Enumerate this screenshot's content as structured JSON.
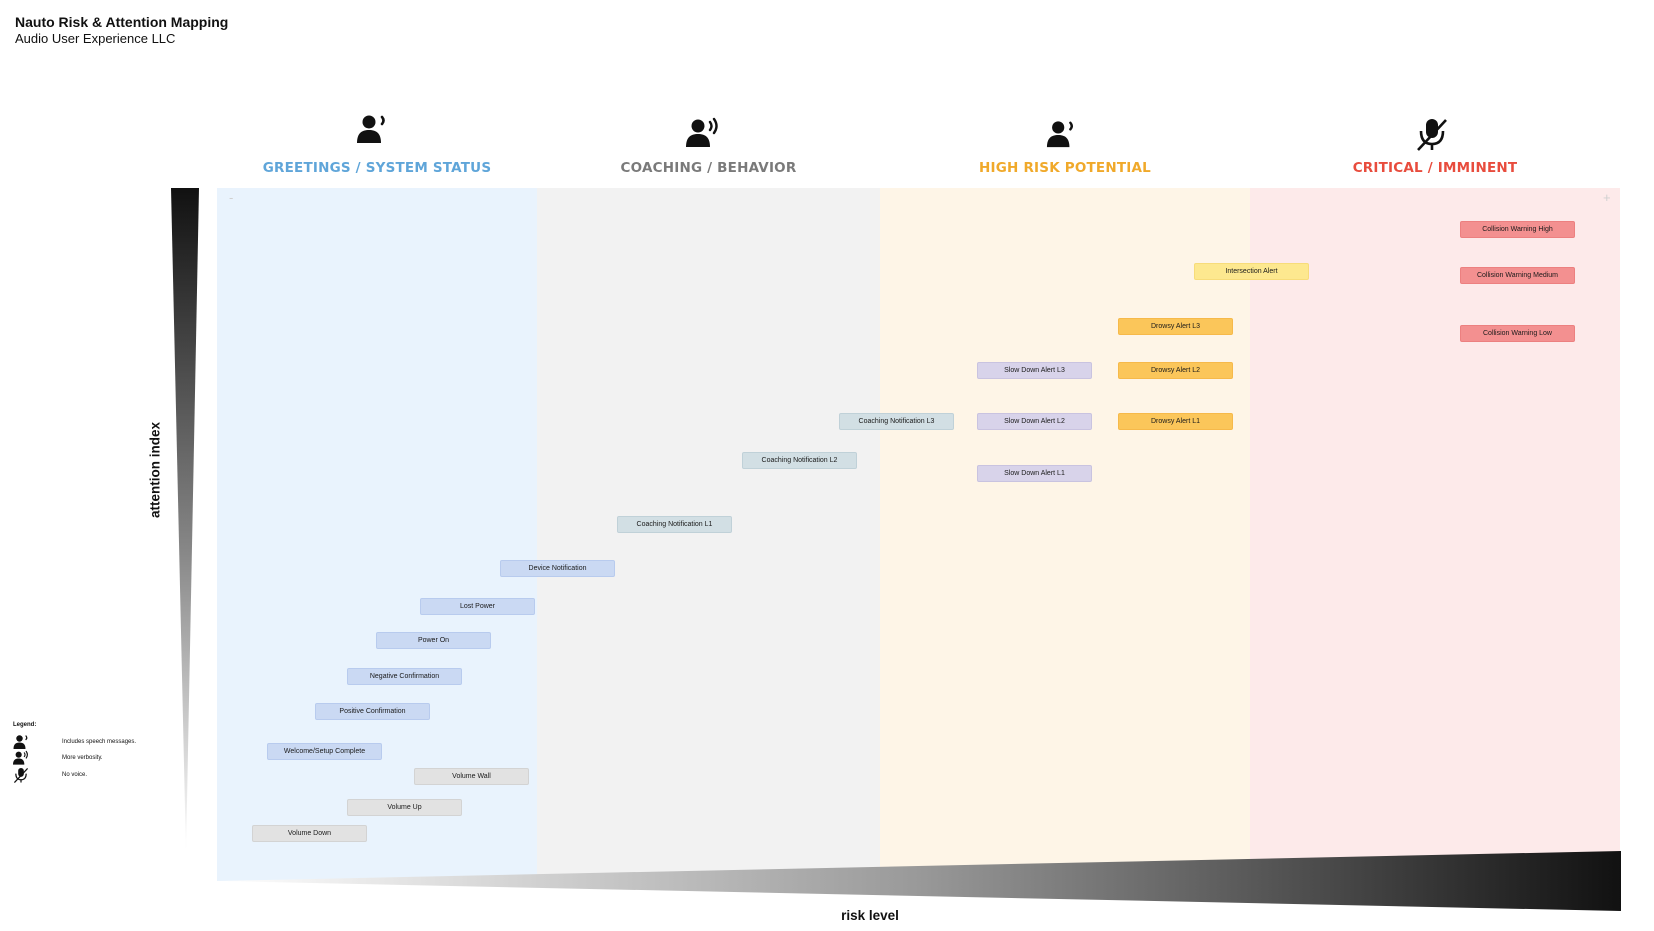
{
  "header": {
    "title": "Nauto Risk & Attention Mapping",
    "subtitle": "Audio User Experience LLC"
  },
  "columns": [
    {
      "label": "GREETINGS / SYSTEM STATUS",
      "color": "#5fa5d9",
      "icon": "speaking-person-icon"
    },
    {
      "label": "COACHING / BEHAVIOR",
      "color": "#7a7a7a",
      "icon": "verbose-speaking-person-icon"
    },
    {
      "label": "HIGH RISK POTENTIAL",
      "color": "#f0a92a",
      "icon": "speaking-person-icon"
    },
    {
      "label": "CRITICAL / IMMINENT",
      "color": "#e84c3d",
      "icon": "muted-microphone-icon"
    }
  ],
  "zone_colors": {
    "greetings": "#e9f3fd",
    "coaching": "#f2f2f2",
    "high_risk": "#fef5e7",
    "critical": "#fdeaea"
  },
  "markers": {
    "low": "-",
    "high": "+"
  },
  "axes": {
    "y_label": "attention index",
    "x_label": "risk level"
  },
  "alerts": [
    {
      "label": "Collision Warning High",
      "color": "red"
    },
    {
      "label": "Collision Warning Medium",
      "color": "red"
    },
    {
      "label": "Collision Warning Low",
      "color": "red"
    },
    {
      "label": "Intersection Alert",
      "color": "yellow"
    },
    {
      "label": "Drowsy Alert L3",
      "color": "orange"
    },
    {
      "label": "Drowsy Alert L2",
      "color": "orange"
    },
    {
      "label": "Drowsy Alert L1",
      "color": "orange"
    },
    {
      "label": "Slow Down Alert L3",
      "color": "purple"
    },
    {
      "label": "Slow Down Alert L2",
      "color": "purple"
    },
    {
      "label": "Slow Down Alert L1",
      "color": "purple"
    },
    {
      "label": "Coaching Notification L3",
      "color": "teal"
    },
    {
      "label": "Coaching Notification L2",
      "color": "teal"
    },
    {
      "label": "Coaching Notification L1",
      "color": "teal"
    },
    {
      "label": "Device Notification",
      "color": "blue"
    },
    {
      "label": "Lost Power",
      "color": "blue"
    },
    {
      "label": "Power On",
      "color": "blue"
    },
    {
      "label": "Negative Confirmation",
      "color": "blue"
    },
    {
      "label": "Positive Confirmation",
      "color": "blue"
    },
    {
      "label": "Welcome/Setup Complete",
      "color": "blue"
    },
    {
      "label": "Volume Wall",
      "color": "grey"
    },
    {
      "label": "Volume Up",
      "color": "grey"
    },
    {
      "label": "Volume Down",
      "color": "grey"
    }
  ],
  "legend": {
    "title": "Legend:",
    "items": [
      {
        "icon": "speaking-person-icon",
        "text": "Includes speech messages."
      },
      {
        "icon": "verbose-speaking-person-icon",
        "text": "More verbosity."
      },
      {
        "icon": "muted-microphone-icon",
        "text": "No voice."
      }
    ]
  }
}
